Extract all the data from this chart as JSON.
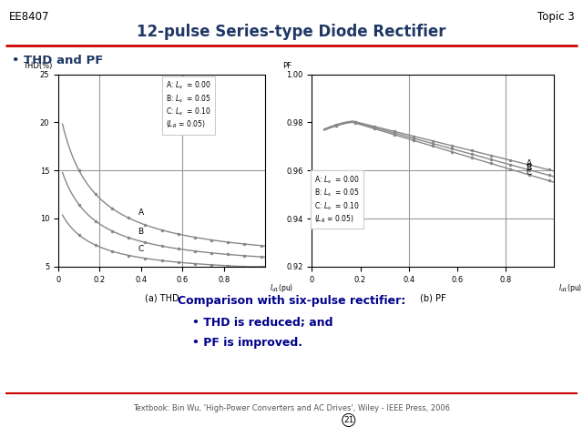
{
  "title": "12-pulse Series-type Diode Rectifier",
  "header_left": "EE8407",
  "header_right": "Topic 3",
  "bullet1": "THD and PF",
  "thd_ylabel": "THD(%)",
  "thd_sub_xlabel": "(a) THD",
  "pf_ylabel": "PF",
  "pf_sub_xlabel": "(b) PF",
  "thd_xlim": [
    0,
    1.0
  ],
  "thd_ylim": [
    5,
    25
  ],
  "thd_yticks": [
    5,
    10,
    15,
    20,
    25
  ],
  "thd_xticks": [
    0,
    0.2,
    0.4,
    0.6,
    0.8
  ],
  "pf_xlim": [
    0,
    1.0
  ],
  "pf_ylim": [
    0.92,
    1.0
  ],
  "pf_yticks": [
    0.92,
    0.94,
    0.96,
    0.98,
    1.0
  ],
  "pf_xticks": [
    0,
    0.2,
    0.4,
    0.6,
    0.8
  ],
  "comparison_text": "Comparison with six-pulse rectifier:",
  "bullet_thd": "THD is reduced; and",
  "bullet_pf": "PF is improved.",
  "footer": "Textbook: Bin Wu, 'High-Power Converters and AC Drives', Wiley - IEEE Press, 2006",
  "page_num": "21",
  "bg_color": "#FFFFFF",
  "title_color": "#1F3864",
  "header_color": "#000000",
  "bullet_color": "#1F3864",
  "comparison_color": "#00008B",
  "curve_color": "#888888",
  "ref_line_color": "#999999",
  "red_line_color": "#CC0000",
  "footer_color": "#555555",
  "legend_box_color": "#CCCCCC"
}
